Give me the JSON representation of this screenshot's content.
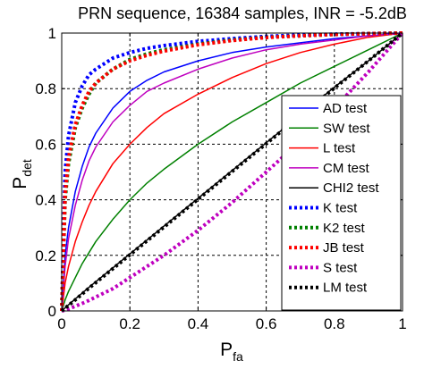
{
  "chart_data": {
    "type": "line",
    "title": "PRN sequence, 16384 samples, INR = -5.2dB",
    "xlabel": "P",
    "xlabel_sub": "fa",
    "ylabel": "P",
    "ylabel_sub": "det",
    "xlim": [
      0,
      1
    ],
    "ylim": [
      0,
      1
    ],
    "xticks": [
      "0",
      "0.2",
      "0.4",
      "0.6",
      "0.8",
      "1"
    ],
    "yticks": [
      "0",
      "0.2",
      "0.4",
      "0.6",
      "0.8",
      "1"
    ],
    "grid": true,
    "legend_position": "bottom-right",
    "x": [
      0,
      0.01,
      0.02,
      0.04,
      0.06,
      0.08,
      0.1,
      0.15,
      0.2,
      0.25,
      0.3,
      0.4,
      0.5,
      0.6,
      0.7,
      0.8,
      0.9,
      1.0
    ],
    "series": [
      {
        "name": "AD test",
        "color": "#0000ff",
        "style": "solid",
        "values": [
          0,
          0.2,
          0.3,
          0.43,
          0.52,
          0.59,
          0.64,
          0.73,
          0.79,
          0.83,
          0.86,
          0.9,
          0.93,
          0.95,
          0.965,
          0.98,
          0.99,
          1.0
        ]
      },
      {
        "name": "SW test",
        "color": "#008000",
        "style": "solid",
        "values": [
          0,
          0.04,
          0.07,
          0.12,
          0.17,
          0.21,
          0.25,
          0.33,
          0.4,
          0.46,
          0.51,
          0.6,
          0.68,
          0.75,
          0.82,
          0.88,
          0.94,
          1.0
        ]
      },
      {
        "name": "L test",
        "color": "#ff0000",
        "style": "solid",
        "values": [
          0,
          0.1,
          0.16,
          0.25,
          0.32,
          0.38,
          0.43,
          0.53,
          0.6,
          0.66,
          0.71,
          0.78,
          0.84,
          0.89,
          0.93,
          0.96,
          0.985,
          1.0
        ]
      },
      {
        "name": "CM test",
        "color": "#bf00bf",
        "style": "solid",
        "values": [
          0,
          0.16,
          0.26,
          0.38,
          0.47,
          0.54,
          0.59,
          0.68,
          0.74,
          0.79,
          0.82,
          0.87,
          0.91,
          0.94,
          0.96,
          0.975,
          0.99,
          1.0
        ]
      },
      {
        "name": "CHI2 test",
        "color": "#000000",
        "style": "solid",
        "values": [
          0,
          0.011,
          0.022,
          0.043,
          0.064,
          0.085,
          0.105,
          0.155,
          0.205,
          0.255,
          0.305,
          0.405,
          0.505,
          0.605,
          0.705,
          0.805,
          0.9,
          1.0
        ]
      },
      {
        "name": "K test",
        "color": "#0000ff",
        "style": "dotted",
        "values": [
          0,
          0.5,
          0.63,
          0.75,
          0.81,
          0.85,
          0.87,
          0.91,
          0.93,
          0.945,
          0.955,
          0.97,
          0.98,
          0.988,
          0.993,
          0.996,
          0.998,
          1.0
        ]
      },
      {
        "name": "K2 test",
        "color": "#008000",
        "style": "dotted",
        "values": [
          0,
          0.4,
          0.53,
          0.66,
          0.73,
          0.78,
          0.82,
          0.87,
          0.905,
          0.925,
          0.94,
          0.96,
          0.975,
          0.985,
          0.99,
          0.995,
          0.998,
          1.0
        ]
      },
      {
        "name": "JB test",
        "color": "#ff0000",
        "style": "dotted",
        "values": [
          0,
          0.42,
          0.55,
          0.67,
          0.74,
          0.79,
          0.82,
          0.87,
          0.9,
          0.92,
          0.935,
          0.958,
          0.973,
          0.984,
          0.99,
          0.995,
          0.998,
          1.0
        ]
      },
      {
        "name": "S test",
        "color": "#bf00bf",
        "style": "dotted",
        "values": [
          0,
          0.003,
          0.007,
          0.017,
          0.027,
          0.038,
          0.05,
          0.08,
          0.12,
          0.16,
          0.2,
          0.29,
          0.39,
          0.5,
          0.61,
          0.73,
          0.86,
          1.0
        ]
      },
      {
        "name": "LM test",
        "color": "#000000",
        "style": "dotted",
        "values": [
          0,
          0.01,
          0.02,
          0.04,
          0.061,
          0.082,
          0.102,
          0.152,
          0.202,
          0.252,
          0.302,
          0.402,
          0.502,
          0.602,
          0.702,
          0.802,
          0.9,
          1.0
        ]
      }
    ]
  }
}
